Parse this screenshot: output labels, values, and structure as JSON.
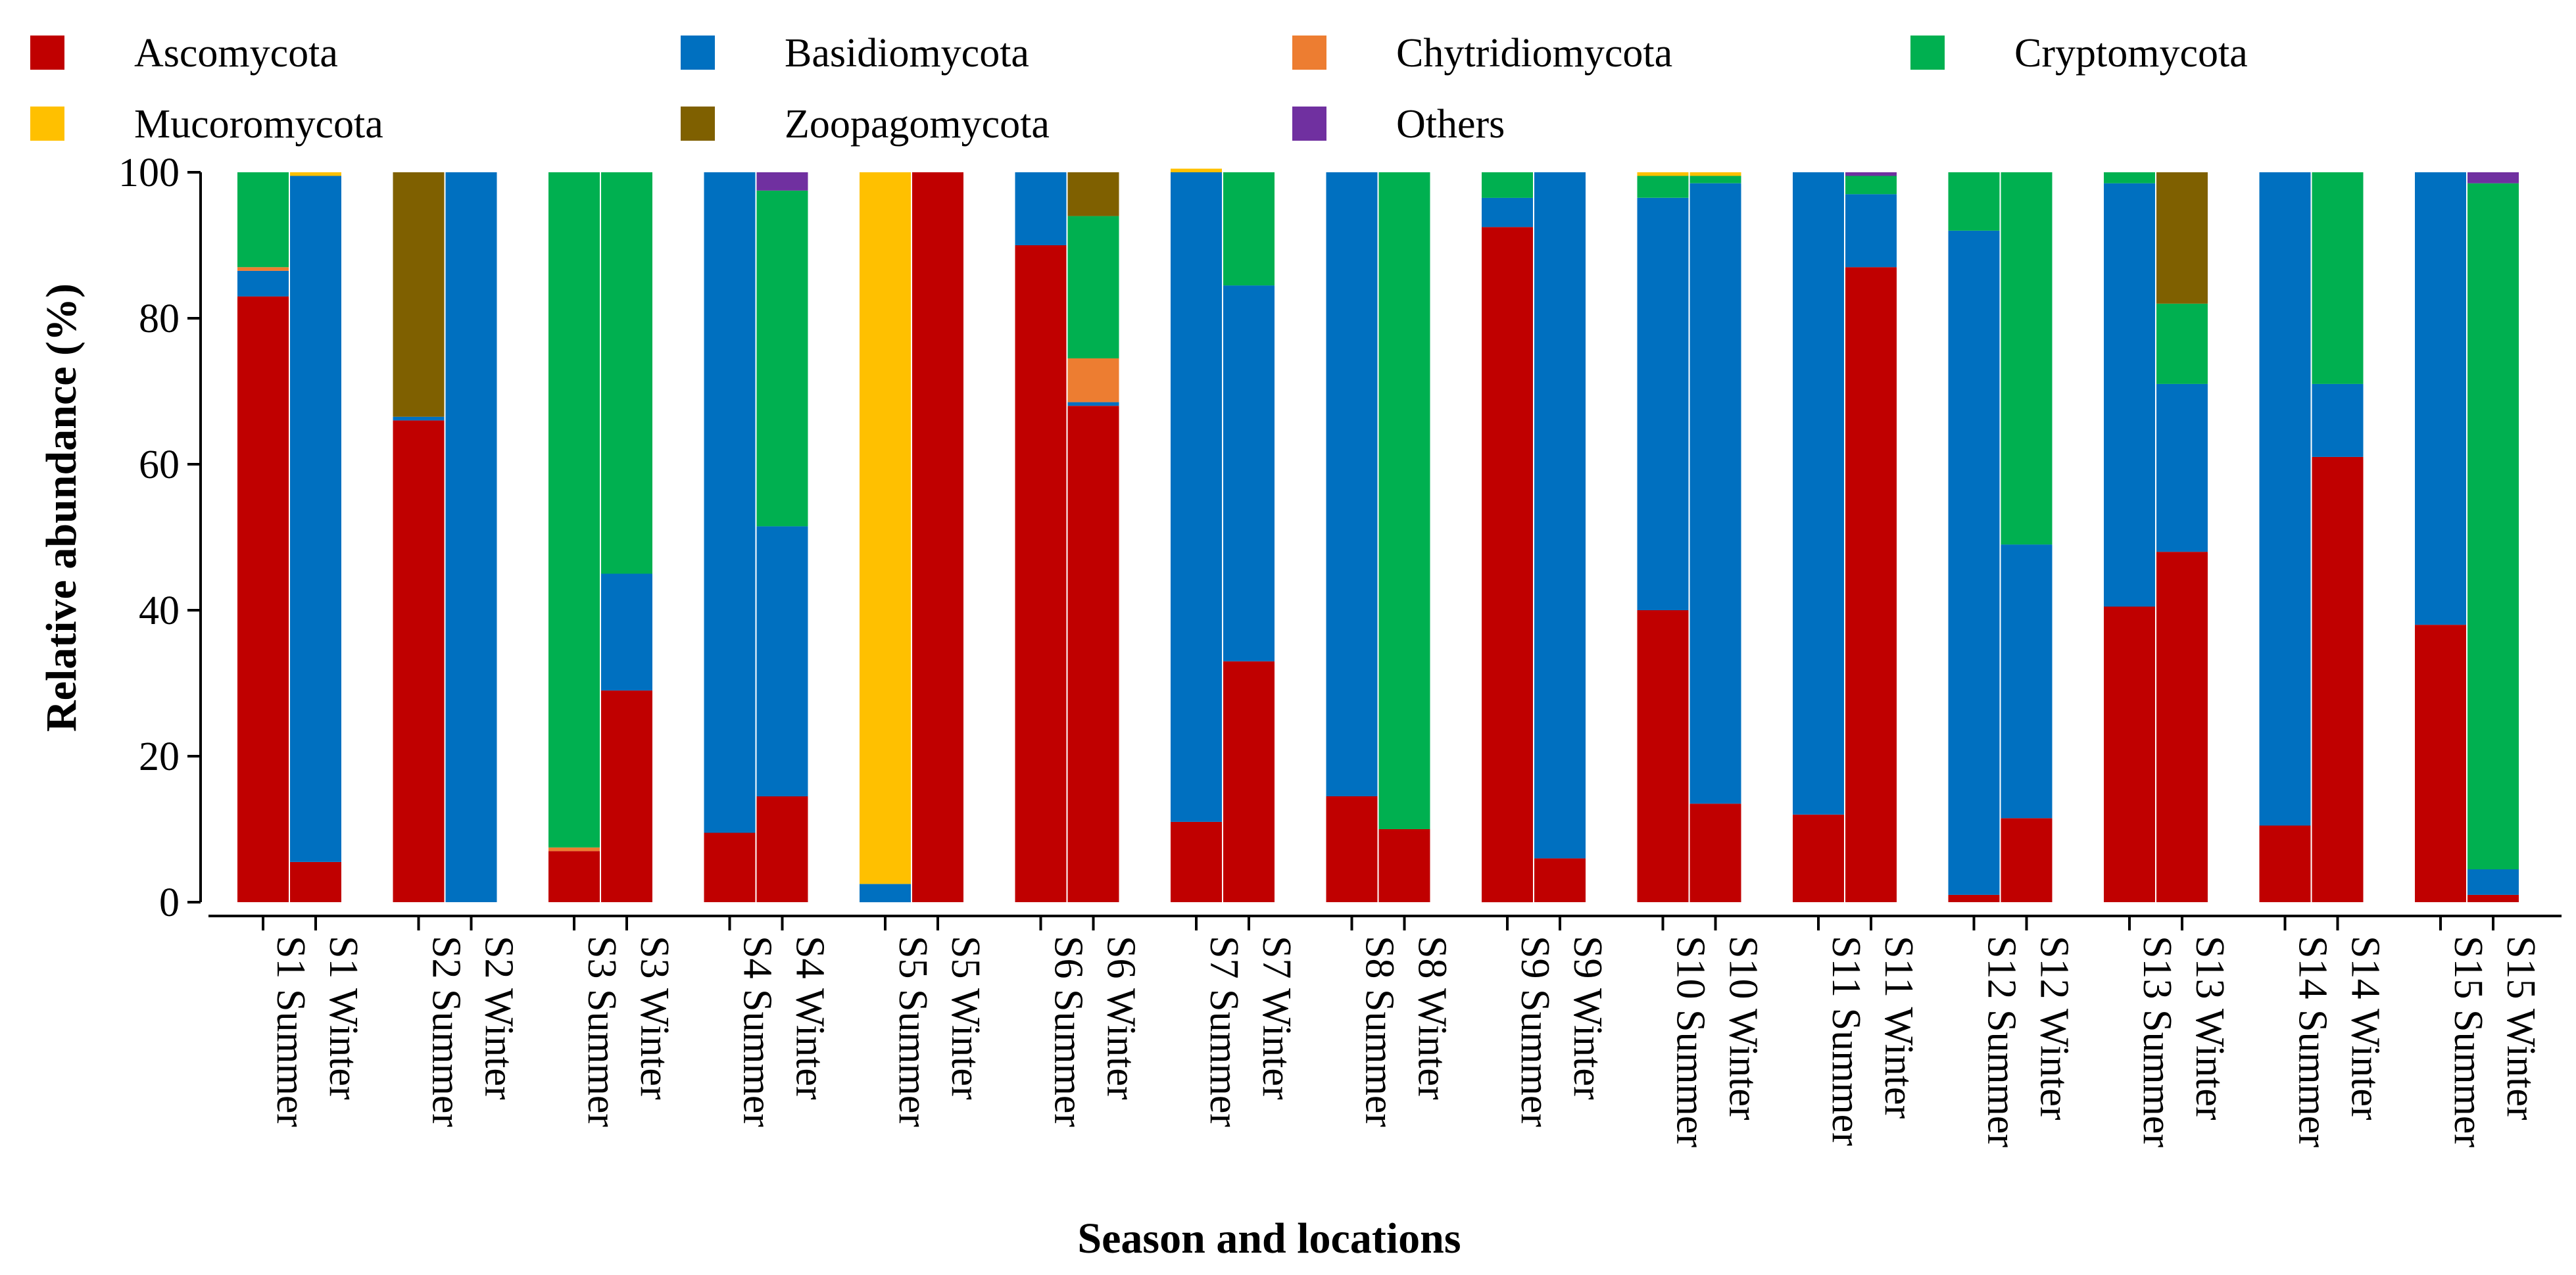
{
  "chart_data": {
    "type": "stacked-bar",
    "title": "",
    "xlabel": "Season and locations",
    "ylabel": "Relative abundance (%)",
    "ylim": [
      0,
      100
    ],
    "yticks": [
      0,
      20,
      40,
      60,
      80,
      100
    ],
    "grid": false,
    "legend_position": "top",
    "categories": [
      "S1 Summer",
      "S1 Winter",
      "S2 Summer",
      "S2 Winter",
      "S3 Summer",
      "S3 Winter",
      "S4 Summer",
      "S4 Winter",
      "S5 Summer",
      "S5 Winter",
      "S6 Summer",
      "S6 Winter",
      "S7 Summer",
      "S7 Winter",
      "S8 Summer",
      "S8 Winter",
      "S9 Summer",
      "S9 Winter",
      "S10 Summer",
      "S10 Winter",
      "S11 Summer",
      "S11 Winter",
      "S12 Summer",
      "S12 Winter",
      "S13 Summer",
      "S13 Winter",
      "S14 Summer",
      "S14 Winter",
      "S15 Summer",
      "S15 Winter"
    ],
    "series": [
      {
        "name": "Ascomycota",
        "color": "#C00000",
        "values": [
          83,
          5.5,
          66,
          0,
          7,
          29,
          9.5,
          14.5,
          0,
          100,
          90,
          68,
          11,
          33,
          14.5,
          10,
          92.5,
          6,
          40,
          13.5,
          12,
          87,
          1,
          11.5,
          40.5,
          48,
          10.5,
          61,
          38,
          1
        ]
      },
      {
        "name": "Basidiomycota",
        "color": "#0070C0",
        "values": [
          3.5,
          94,
          0.5,
          100,
          0,
          16,
          90.5,
          37,
          2.5,
          0,
          10,
          0.5,
          89,
          51.5,
          85.5,
          0,
          4,
          94,
          56.5,
          85,
          88,
          10,
          91,
          37.5,
          58,
          23,
          89.5,
          10,
          62,
          3.5
        ]
      },
      {
        "name": "Chytridiomycota",
        "color": "#ED7D31",
        "values": [
          0.5,
          0,
          0,
          0,
          0.5,
          0,
          0,
          0,
          0,
          0,
          0,
          6,
          0,
          0,
          0,
          0,
          0,
          0,
          0,
          0,
          0,
          0,
          0,
          0,
          0,
          0,
          0,
          0,
          0,
          0
        ]
      },
      {
        "name": "Cryptomycota",
        "color": "#00B050",
        "values": [
          13,
          0,
          0,
          0,
          92.5,
          55,
          0,
          46,
          0,
          0,
          0,
          19.5,
          0,
          15.5,
          0,
          90,
          3.5,
          0,
          3,
          1,
          0,
          2.5,
          8,
          51,
          1.5,
          11,
          0,
          29,
          0,
          94
        ]
      },
      {
        "name": "Mucoromycota",
        "color": "#FFC000",
        "values": [
          0,
          0.5,
          0,
          0,
          0,
          0,
          0,
          0,
          97.5,
          0,
          0,
          0,
          0.5,
          0,
          0,
          0,
          0,
          0,
          0.5,
          0.5,
          0,
          0,
          0,
          0,
          0,
          0,
          0,
          0,
          0,
          0
        ]
      },
      {
        "name": "Zoopagomycota",
        "color": "#7F6000",
        "values": [
          0,
          0,
          33.5,
          0,
          0,
          0,
          0,
          0,
          0,
          0,
          0,
          6,
          0,
          0,
          0,
          0,
          0,
          0,
          0,
          0,
          0,
          0,
          0,
          0,
          0,
          18,
          0,
          0,
          0,
          0
        ]
      },
      {
        "name": "Others",
        "color": "#7030A0",
        "values": [
          0,
          0,
          0,
          0,
          0,
          0,
          0,
          2.5,
          0,
          0,
          0,
          0,
          0,
          0,
          0,
          0,
          0,
          0,
          0,
          0,
          0,
          0.5,
          0,
          0,
          0,
          0,
          0,
          0,
          0,
          1.5
        ]
      }
    ],
    "legend": [
      "Ascomycota",
      "Basidiomycota",
      "Chytridiomycota",
      "Cryptomycota",
      "Mucoromycota",
      "Zoopagomycota",
      "Others"
    ]
  }
}
